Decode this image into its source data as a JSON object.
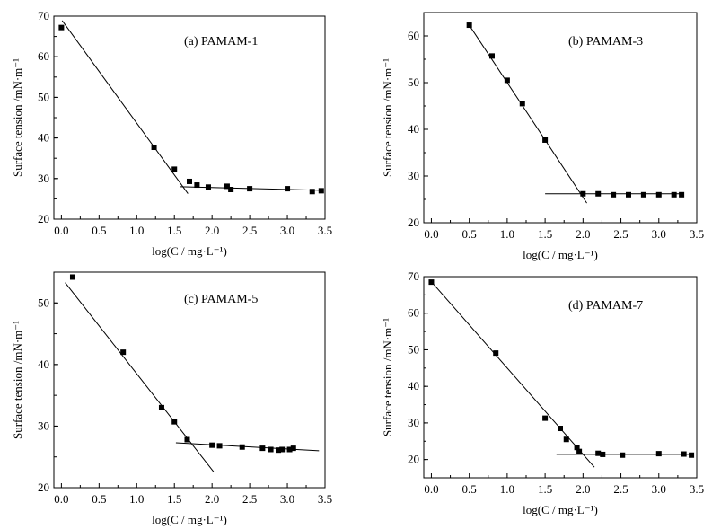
{
  "chart_data": [
    {
      "type": "scatter",
      "annotation": "(a) PAMAM-1",
      "xlabel": "log(C / mg·L⁻¹)",
      "ylabel": "Surface tension /mN·m⁻¹",
      "xlim": [
        -0.1,
        3.5
      ],
      "ylim": [
        20,
        70
      ],
      "xticks": [
        "0.0",
        "0.5",
        "1.0",
        "1.5",
        "2.0",
        "2.5",
        "3.0",
        "3.5"
      ],
      "yticks": [
        "20",
        "30",
        "40",
        "50",
        "60",
        "70"
      ],
      "points": [
        [
          0.0,
          67.2
        ],
        [
          1.23,
          37.7
        ],
        [
          1.5,
          32.3
        ],
        [
          1.7,
          29.3
        ],
        [
          1.8,
          28.4
        ],
        [
          1.95,
          27.9
        ],
        [
          2.2,
          28.1
        ],
        [
          2.25,
          27.3
        ],
        [
          2.5,
          27.5
        ],
        [
          3.0,
          27.5
        ],
        [
          3.33,
          26.8
        ],
        [
          3.45,
          27.0
        ]
      ],
      "fit_lines": [
        {
          "x": [
            0.01,
            1.68
          ],
          "y": [
            68.9,
            26.3
          ]
        },
        {
          "x": [
            1.58,
            3.45
          ],
          "y": [
            28.0,
            27.1
          ]
        }
      ],
      "grid": false
    },
    {
      "type": "scatter",
      "annotation": "(b) PAMAM-3",
      "xlabel": "log(C / mg·L⁻¹)",
      "ylabel": "Surface tension /mN·m⁻¹",
      "xlim": [
        -0.1,
        3.5
      ],
      "ylim": [
        20,
        65
      ],
      "xticks": [
        "0.0",
        "0.5",
        "1.0",
        "1.5",
        "2.0",
        "2.5",
        "3.0",
        "3.5"
      ],
      "yticks": [
        "20",
        "30",
        "40",
        "50",
        "60"
      ],
      "points": [
        [
          0.5,
          62.3
        ],
        [
          0.8,
          55.7
        ],
        [
          1.0,
          50.5
        ],
        [
          1.2,
          45.5
        ],
        [
          1.5,
          37.7
        ],
        [
          2.0,
          26.2
        ],
        [
          2.2,
          26.2
        ],
        [
          2.4,
          26.0
        ],
        [
          2.6,
          26.0
        ],
        [
          2.8,
          26.0
        ],
        [
          3.0,
          26.0
        ],
        [
          3.2,
          26.0
        ],
        [
          3.3,
          26.0
        ]
      ],
      "fit_lines": [
        {
          "x": [
            0.5,
            2.05
          ],
          "y": [
            62.3,
            24.2
          ]
        },
        {
          "x": [
            1.5,
            3.3
          ],
          "y": [
            26.2,
            26.2
          ]
        }
      ],
      "grid": false
    },
    {
      "type": "scatter",
      "annotation": "(c) PAMAM-5",
      "xlabel": "log(C / mg·L⁻¹)",
      "ylabel": "Surface tension /mN·m⁻¹",
      "xlim": [
        -0.1,
        3.5
      ],
      "ylim": [
        20,
        55
      ],
      "xticks": [
        "0.0",
        "0.5",
        "1.0",
        "1.5",
        "2.0",
        "2.5",
        "3.0",
        "3.5"
      ],
      "yticks": [
        "20",
        "30",
        "40",
        "50"
      ],
      "points": [
        [
          0.15,
          54.2
        ],
        [
          0.82,
          42.0
        ],
        [
          1.33,
          33.0
        ],
        [
          1.5,
          30.7
        ],
        [
          1.67,
          27.8
        ],
        [
          2.0,
          26.9
        ],
        [
          2.1,
          26.8
        ],
        [
          2.4,
          26.6
        ],
        [
          2.67,
          26.4
        ],
        [
          2.78,
          26.2
        ],
        [
          2.88,
          26.1
        ],
        [
          2.93,
          26.2
        ],
        [
          3.03,
          26.2
        ],
        [
          3.08,
          26.4
        ]
      ],
      "fit_lines": [
        {
          "x": [
            0.05,
            2.02
          ],
          "y": [
            53.3,
            22.6
          ]
        },
        {
          "x": [
            1.52,
            3.42
          ],
          "y": [
            27.3,
            26.0
          ]
        }
      ],
      "grid": false
    },
    {
      "type": "scatter",
      "annotation": "(d) PAMAM-7",
      "xlabel": "log(C / mg·L⁻¹)",
      "ylabel": "Surface tension /mN·m⁻¹",
      "xlim": [
        -0.1,
        3.5
      ],
      "ylim": [
        15,
        70
      ],
      "xticks": [
        "0.0",
        "0.5",
        "1.0",
        "1.5",
        "2.0",
        "2.5",
        "3.0",
        "3.5"
      ],
      "yticks": [
        "20",
        "30",
        "40",
        "50",
        "60",
        "70"
      ],
      "points": [
        [
          0.0,
          68.5
        ],
        [
          0.85,
          49.1
        ],
        [
          1.5,
          31.3
        ],
        [
          1.7,
          28.5
        ],
        [
          1.78,
          25.5
        ],
        [
          1.92,
          23.3
        ],
        [
          1.95,
          22.2
        ],
        [
          2.2,
          21.7
        ],
        [
          2.26,
          21.4
        ],
        [
          2.52,
          21.2
        ],
        [
          3.0,
          21.6
        ],
        [
          3.33,
          21.5
        ],
        [
          3.43,
          21.2
        ]
      ],
      "fit_lines": [
        {
          "x": [
            0.0,
            2.15
          ],
          "y": [
            68.6,
            17.9
          ]
        },
        {
          "x": [
            1.65,
            3.45
          ],
          "y": [
            21.4,
            21.4
          ]
        }
      ],
      "grid": false
    }
  ]
}
